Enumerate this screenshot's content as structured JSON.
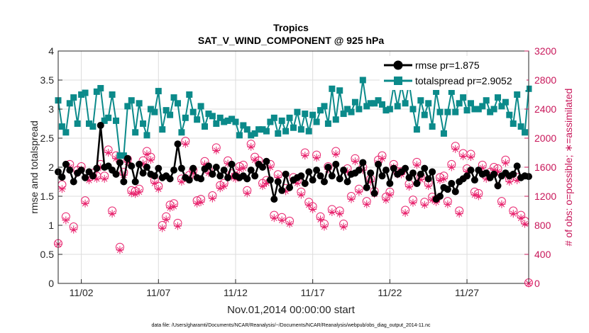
{
  "chart_data": {
    "type": "line",
    "title": "Tropics",
    "subtitle": "SAT_V_WIND_COMPONENT @ 925 hPa",
    "xlabel": "Nov.01,2014 00:00:00 start",
    "ylabel": "rmse and totalspread",
    "ylabel_right": "# of obs: o=possible; ∗=assimilated",
    "footnote": "data file: /Users/gharamti/Documents/NCAR/Reanalysis/~/Documents/NCAR/Reanalysis/webpub/obs_diag_output_2014-11.nc",
    "xlim": [
      0.5,
      31.0
    ],
    "ylim": [
      0,
      4
    ],
    "ylim_right": [
      0,
      3200
    ],
    "x_ticks": [
      {
        "value": 2,
        "label": "11/02"
      },
      {
        "value": 7,
        "label": "11/07"
      },
      {
        "value": 12,
        "label": "11/12"
      },
      {
        "value": 17,
        "label": "11/17"
      },
      {
        "value": 22,
        "label": "11/22"
      },
      {
        "value": 27,
        "label": "11/27"
      }
    ],
    "y_ticks": [
      "0",
      "0.5",
      "1",
      "1.5",
      "2",
      "2.5",
      "3",
      "3.5",
      "4"
    ],
    "y_ticks_right": [
      "0",
      "400",
      "800",
      "1200",
      "1600",
      "2000",
      "2400",
      "2800",
      "3200"
    ],
    "grid": true,
    "legend_position": "top-right",
    "x": [
      0.5,
      0.75,
      1,
      1.25,
      1.5,
      1.75,
      2,
      2.25,
      2.5,
      2.75,
      3,
      3.25,
      3.5,
      3.75,
      4,
      4.25,
      4.5,
      4.75,
      5,
      5.25,
      5.5,
      5.75,
      6,
      6.25,
      6.5,
      6.75,
      7,
      7.25,
      7.5,
      7.75,
      8,
      8.25,
      8.5,
      8.75,
      9,
      9.25,
      9.5,
      9.75,
      10,
      10.25,
      10.5,
      10.75,
      11,
      11.25,
      11.5,
      11.75,
      12,
      12.25,
      12.5,
      12.75,
      13,
      13.25,
      13.5,
      13.75,
      14,
      14.25,
      14.5,
      14.75,
      15,
      15.25,
      15.5,
      15.75,
      16,
      16.25,
      16.5,
      16.75,
      17,
      17.25,
      17.5,
      17.75,
      18,
      18.25,
      18.5,
      18.75,
      19,
      19.25,
      19.5,
      19.75,
      20,
      20.25,
      20.5,
      20.75,
      21,
      21.25,
      21.5,
      21.75,
      22,
      22.25,
      22.5,
      22.75,
      23,
      23.25,
      23.5,
      23.75,
      24,
      24.25,
      24.5,
      24.75,
      25,
      25.25,
      25.5,
      25.75,
      26,
      26.25,
      26.5,
      26.75,
      27,
      27.25,
      27.5,
      27.75,
      28,
      28.25,
      28.5,
      28.75,
      29,
      29.25,
      29.5,
      29.75,
      30,
      30.25,
      30.5,
      30.75,
      31
    ],
    "series": [
      {
        "name": "rmse pr=1.875",
        "axis": "left",
        "color": "#000000",
        "marker": "circle",
        "values": [
          1.92,
          1.83,
          2.05,
          1.95,
          1.75,
          1.9,
          1.95,
          1.82,
          1.92,
          1.85,
          1.98,
          2.72,
          2.0,
          2.02,
          1.95,
          1.88,
          2.08,
          1.75,
          2.15,
          2.02,
          1.75,
          2.05,
          1.9,
          2.0,
          1.88,
          1.85,
          1.98,
          1.82,
          1.85,
          1.8,
          1.95,
          2.4,
          1.98,
          1.82,
          1.78,
          1.98,
          1.82,
          1.8,
          1.97,
          2.02,
          1.88,
          2.0,
          1.85,
          1.95,
          1.82,
          2.05,
          1.85,
          1.82,
          1.85,
          1.8,
          1.95,
          1.85,
          2.05,
          2.0,
          2.1,
          1.78,
          1.45,
          1.75,
          1.6,
          1.88,
          1.65,
          1.78,
          1.82,
          1.85,
          1.72,
          1.92,
          1.78,
          1.95,
          1.85,
          1.75,
          2.0,
          1.85,
          2.05,
          1.8,
          1.95,
          1.75,
          1.88,
          1.9,
          1.95,
          2.08,
          1.65,
          1.9,
          1.55,
          2.05,
          1.85,
          1.95,
          1.72,
          1.98,
          1.88,
          1.92,
          1.98,
          1.82,
          1.9,
          1.72,
          1.88,
          1.98,
          1.8,
          1.92,
          1.45,
          1.5,
          1.65,
          1.62,
          1.72,
          1.58,
          1.75,
          1.8,
          1.85,
          1.95,
          1.78,
          1.95,
          1.88,
          1.9,
          1.82,
          1.88,
          1.68,
          1.85,
          1.9,
          1.85,
          1.88,
          2.02,
          1.82,
          1.85,
          1.84
        ]
      },
      {
        "name": "totalspread pr=2.9052",
        "axis": "left",
        "color": "#0b8a8a",
        "marker": "square",
        "values": [
          3.15,
          2.7,
          2.6,
          3.1,
          3.2,
          2.75,
          3.25,
          3.28,
          2.75,
          2.7,
          3.3,
          3.36,
          2.8,
          2.85,
          3.25,
          2.8,
          2.2,
          2.2,
          3.05,
          3.15,
          2.6,
          3.1,
          2.75,
          2.55,
          3.0,
          2.95,
          3.31,
          2.65,
          2.98,
          2.9,
          3.2,
          3.1,
          2.6,
          2.85,
          3.25,
          2.95,
          2.82,
          3.05,
          2.7,
          2.92,
          2.88,
          2.75,
          2.85,
          2.78,
          2.8,
          2.83,
          2.78,
          2.55,
          2.72,
          2.65,
          2.55,
          2.58,
          2.65,
          2.65,
          2.62,
          2.78,
          2.85,
          2.58,
          2.8,
          2.62,
          2.85,
          2.68,
          2.95,
          2.65,
          2.92,
          2.62,
          2.9,
          2.78,
          2.98,
          3.05,
          2.75,
          3.35,
          2.82,
          3.32,
          2.92,
          3.0,
          2.95,
          3.12,
          3.0,
          3.5,
          3.05,
          3.1,
          3.1,
          3.15,
          3.08,
          2.98,
          3.0,
          3.4,
          3.05,
          3.4,
          3.1,
          3.45,
          3.0,
          2.65,
          3.15,
          2.9,
          3.1,
          2.7,
          3.3,
          2.95,
          2.58,
          2.95,
          3.3,
          2.95,
          3.1,
          3.2,
          2.98,
          3.1,
          3.0,
          3.0,
          3.05,
          3.15,
          2.95,
          3.0,
          3.2,
          3.05,
          3.12,
          2.9,
          2.75,
          3.25,
          2.7,
          2.6,
          3.35
        ]
      },
      {
        "name": "possible",
        "axis": "right",
        "color": "#e8246e",
        "marker": "o",
        "values": [
          550,
          1360,
          920,
          1640,
          780,
          1560,
          1610,
          1140,
          1460,
          1520,
          1480,
          1640,
          1480,
          1840,
          1000,
          1760,
          500,
          1530,
          1710,
          1280,
          1270,
          1300,
          1690,
          1820,
          1740,
          1420,
          1340,
          800,
          920,
          1080,
          1100,
          830,
          1440,
          1960,
          1490,
          1560,
          1140,
          1160,
          1680,
          1560,
          1210,
          1870,
          1350,
          1380,
          1690,
          1510,
          1480,
          1610,
          1630,
          1280,
          1920,
          1740,
          1690,
          1380,
          1420,
          1640,
          940,
          1500,
          910,
          1310,
          860,
          1460,
          1420,
          1260,
          1800,
          1120,
          1060,
          1770,
          920,
          820,
          1610,
          1020,
          1820,
          1000,
          820,
          1580,
          1200,
          1720,
          1300,
          1600,
          1130,
          1440,
          1270,
          1700,
          1760,
          1190,
          1260,
          1640,
          1540,
          1540,
          1010,
          1370,
          1150,
          1670,
          1470,
          1120,
          1380,
          1190,
          1160,
          1460,
          1480,
          1130,
          1640,
          1890,
          1000,
          1790,
          1580,
          1780,
          1260,
          1240,
          1630,
          1480,
          1530,
          1600,
          1580,
          1130,
          1700,
          1440,
          1000,
          1460,
          940,
          860,
          10
        ]
      },
      {
        "name": "assimilated",
        "axis": "right",
        "color": "#e8246e",
        "marker": "asterisk",
        "values": [
          540,
          1300,
          870,
          1600,
          740,
          1520,
          1570,
          1100,
          1420,
          1480,
          1440,
          1600,
          1440,
          1800,
          960,
          1720,
          460,
          1490,
          1670,
          1240,
          1230,
          1260,
          1650,
          1780,
          1700,
          1380,
          1300,
          760,
          880,
          1040,
          1060,
          790,
          1400,
          1920,
          1450,
          1520,
          1100,
          1120,
          1640,
          1520,
          1170,
          1830,
          1310,
          1340,
          1650,
          1470,
          1440,
          1570,
          1590,
          1240,
          1880,
          1700,
          1650,
          1340,
          1380,
          1600,
          900,
          1460,
          870,
          1270,
          820,
          1420,
          1380,
          1220,
          1760,
          1080,
          1020,
          1730,
          880,
          780,
          1570,
          980,
          1780,
          960,
          780,
          1540,
          1160,
          1680,
          1260,
          1560,
          1090,
          1400,
          1230,
          1660,
          1720,
          1150,
          1220,
          1600,
          1500,
          1500,
          970,
          1330,
          1110,
          1630,
          1430,
          1080,
          1340,
          1150,
          1120,
          1420,
          1440,
          1090,
          1600,
          1850,
          960,
          1750,
          1540,
          1740,
          1220,
          1200,
          1590,
          1440,
          1490,
          1560,
          1540,
          1090,
          1660,
          1400,
          960,
          1420,
          900,
          820,
          0
        ]
      }
    ]
  }
}
